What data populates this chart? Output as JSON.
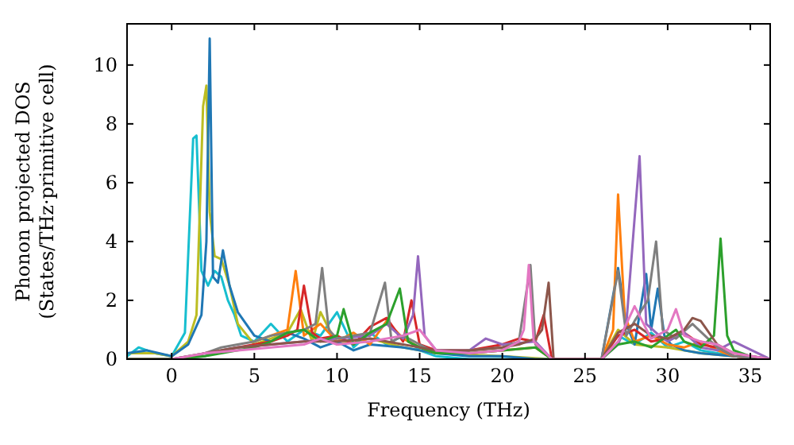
{
  "chart_data": {
    "type": "line",
    "xlabel": "Frequency (THz)",
    "ylabel": "Phonon projected DOS\n(States/THz·primitive cell)",
    "xlim": [
      -2.7,
      36.2
    ],
    "ylim": [
      0,
      11.4
    ],
    "xticks": [
      0,
      5,
      10,
      15,
      20,
      25,
      30,
      35
    ],
    "yticks": [
      0,
      2,
      4,
      6,
      8,
      10
    ],
    "grid": false,
    "marker": "none",
    "line_style": "solid",
    "series": [
      {
        "color": "#17becf",
        "x": [
          -2.7,
          -2,
          -1,
          0,
          0.8,
          1.3,
          1.5,
          1.8,
          2.2,
          2.6,
          3,
          3.4,
          3.8,
          4.2,
          5,
          6,
          7,
          8,
          9,
          10,
          11,
          12,
          13,
          14,
          15,
          16,
          18,
          20,
          22,
          23,
          26,
          27,
          28,
          29,
          30,
          31,
          32,
          33,
          34
        ],
        "values": [
          0.1,
          0.4,
          0.2,
          0.1,
          0.9,
          7.5,
          7.6,
          3.0,
          2.5,
          3.0,
          2.8,
          2.0,
          1.5,
          0.8,
          0.6,
          1.2,
          0.6,
          1.0,
          0.8,
          1.6,
          0.4,
          0.9,
          0.5,
          0.8,
          0.3,
          0.1,
          0,
          0,
          0,
          0,
          0,
          0.8,
          0.5,
          0.9,
          0.4,
          0.6,
          0.3,
          0.2,
          0.1
        ]
      },
      {
        "color": "#bcbd22",
        "x": [
          -2.7,
          -1,
          0,
          1,
          1.5,
          1.9,
          2.1,
          2.3,
          2.6,
          3,
          3.5,
          4,
          5,
          6,
          7,
          7.8,
          8.5,
          9,
          10,
          12,
          14,
          16,
          20,
          23,
          26,
          27,
          28,
          30,
          32,
          34,
          36.2
        ],
        "values": [
          0.2,
          0.2,
          0.1,
          0.6,
          1.5,
          8.6,
          9.3,
          5,
          3.5,
          3.4,
          2.5,
          1.2,
          0.5,
          0.7,
          0.9,
          1.7,
          0.6,
          1.6,
          0.5,
          0.7,
          0.4,
          0.2,
          0.1,
          0,
          0,
          1.0,
          0.5,
          0.4,
          0.2,
          0.1,
          0
        ]
      },
      {
        "color": "#1f77b4",
        "x": [
          -2.7,
          -1.5,
          0,
          1,
          1.8,
          2.1,
          2.3,
          2.5,
          2.8,
          3.1,
          3.5,
          4,
          4.5,
          5,
          6,
          7,
          8,
          9,
          10,
          11,
          12,
          14,
          16,
          18,
          20,
          22,
          23,
          26,
          27,
          27.5,
          28,
          28.7,
          29,
          29.4,
          29.8,
          30.2,
          31,
          32,
          34,
          36.2
        ],
        "values": [
          0.2,
          0.3,
          0.1,
          0.5,
          1.5,
          4,
          10.9,
          2.8,
          2.6,
          3.7,
          2.5,
          1.6,
          1.2,
          0.8,
          0.6,
          0.9,
          0.7,
          0.4,
          0.6,
          0.3,
          0.5,
          0.4,
          0.2,
          0.1,
          0.1,
          0,
          0,
          0,
          3.1,
          1.2,
          0.5,
          2.9,
          1.0,
          2.4,
          0.8,
          0.5,
          0.3,
          0.2,
          0.1,
          0
        ]
      },
      {
        "color": "#ff7f0e",
        "x": [
          5,
          6,
          7,
          7.5,
          8,
          9,
          10,
          11,
          12,
          13,
          14,
          15,
          16,
          18,
          20,
          22,
          23,
          26,
          26.7,
          27,
          27.4,
          28,
          29,
          30,
          31,
          32,
          33,
          34,
          36.2
        ],
        "values": [
          0.6,
          0.8,
          1.0,
          3.0,
          0.8,
          1.2,
          0.6,
          0.9,
          0.5,
          1.3,
          0.7,
          0.4,
          0.2,
          0.2,
          0.3,
          0.4,
          0,
          0,
          1.0,
          5.6,
          1.5,
          0.6,
          0.8,
          0.5,
          0.4,
          0.6,
          0.3,
          0.1,
          0
        ]
      },
      {
        "color": "#d62728",
        "x": [
          3,
          4,
          5,
          6,
          7,
          7.6,
          8,
          8.5,
          9,
          10,
          11,
          12,
          13,
          14,
          14.5,
          15,
          16,
          18,
          20,
          21,
          22,
          22.5,
          23,
          26,
          27,
          28,
          29,
          30,
          31,
          32,
          33,
          34,
          36.2
        ],
        "values": [
          0.3,
          0.4,
          0.5,
          0.6,
          0.8,
          1.0,
          2.5,
          0.9,
          0.7,
          0.8,
          0.5,
          1.1,
          1.4,
          0.6,
          2.0,
          0.5,
          0.3,
          0.3,
          0.5,
          0.7,
          0.6,
          1.5,
          0,
          0,
          0.8,
          1.0,
          0.6,
          0.7,
          0.9,
          0.5,
          0.4,
          0.1,
          0
        ]
      },
      {
        "color": "#9467bd",
        "x": [
          -2.7,
          0,
          2,
          3,
          4,
          6,
          8,
          10,
          12,
          13,
          14,
          14.6,
          14.9,
          15.3,
          16,
          18,
          19,
          20,
          22,
          23,
          26,
          27,
          27.5,
          28,
          28.3,
          28.7,
          29.5,
          30,
          31,
          32,
          33,
          34,
          36.2
        ],
        "values": [
          0,
          0,
          0.1,
          0.3,
          0.4,
          0.5,
          0.6,
          0.7,
          0.8,
          1.2,
          0.7,
          1.5,
          3.5,
          0.8,
          0.3,
          0.3,
          0.7,
          0.5,
          0.6,
          0,
          0,
          0.5,
          1.2,
          4.8,
          6.9,
          1.2,
          0.8,
          0.6,
          0.9,
          0.4,
          0.3,
          0.6,
          0
        ]
      },
      {
        "color": "#7f7f7f",
        "x": [
          -2.7,
          0,
          2,
          3,
          4,
          5,
          6,
          7,
          8,
          8.7,
          9.1,
          9.5,
          10,
          11,
          12,
          12.9,
          13.3,
          14,
          15,
          16,
          18,
          20,
          21,
          21.7,
          22,
          23,
          26,
          27,
          27.5,
          28,
          28.8,
          29.3,
          29.7,
          30.5,
          31.5,
          33,
          34,
          36.2
        ],
        "values": [
          0,
          0,
          0.2,
          0.4,
          0.5,
          0.6,
          0.8,
          0.9,
          1.0,
          1.2,
          3.1,
          1.0,
          0.7,
          0.8,
          0.9,
          2.6,
          0.6,
          0.8,
          0.5,
          0.2,
          0.3,
          0.4,
          0.6,
          3.2,
          0.5,
          0,
          0,
          3.0,
          0.8,
          1.3,
          2.0,
          4.0,
          1.0,
          0.7,
          1.2,
          0.4,
          0.1,
          0
        ]
      },
      {
        "color": "#2ca02c",
        "x": [
          -2.7,
          0,
          2,
          3,
          4,
          5,
          6,
          7,
          8,
          9,
          10,
          10.4,
          11,
          12,
          13,
          13.8,
          14.3,
          15,
          16,
          18,
          20,
          22,
          23,
          26,
          27,
          28,
          29,
          30,
          30.5,
          31,
          32,
          32.8,
          33.2,
          33.6,
          34,
          35,
          36.2
        ],
        "values": [
          0,
          0,
          0.1,
          0.2,
          0.3,
          0.4,
          0.6,
          0.9,
          1.0,
          0.6,
          0.8,
          1.7,
          0.5,
          0.9,
          1.2,
          2.4,
          0.6,
          0.4,
          0.2,
          0.2,
          0.3,
          0.4,
          0,
          0,
          0.5,
          0.6,
          0.4,
          0.8,
          1.0,
          0.6,
          0.4,
          0.8,
          4.1,
          0.8,
          0.3,
          0.1,
          0
        ]
      },
      {
        "color": "#8c564b",
        "x": [
          -2.7,
          0,
          2,
          4,
          6,
          8,
          10,
          12,
          14,
          16,
          18,
          20,
          21,
          22,
          22.4,
          22.8,
          23.1,
          26,
          27,
          28,
          29,
          30,
          31,
          31.5,
          32,
          33,
          34,
          36.2
        ],
        "values": [
          0,
          0,
          0.2,
          0.4,
          0.5,
          0.6,
          0.6,
          0.7,
          0.5,
          0.3,
          0.3,
          0.4,
          0.5,
          0.7,
          1.0,
          2.6,
          0,
          0,
          0.9,
          1.2,
          0.8,
          0.7,
          1.0,
          1.4,
          1.3,
          0.5,
          0.2,
          0
        ]
      },
      {
        "color": "#e377c2",
        "x": [
          0,
          2,
          4,
          6,
          8,
          9,
          10,
          12,
          14,
          15,
          16,
          18,
          20,
          21,
          21.3,
          21.6,
          21.9,
          23,
          26,
          27,
          28,
          29,
          30,
          30.5,
          31,
          32,
          33,
          34,
          36.2
        ],
        "values": [
          0,
          0.2,
          0.3,
          0.4,
          0.5,
          0.7,
          0.5,
          0.6,
          0.8,
          1.0,
          0.3,
          0.2,
          0.3,
          0.6,
          1.0,
          3.2,
          0.6,
          0,
          0,
          0.6,
          1.8,
          0.7,
          1.0,
          1.7,
          0.8,
          0.6,
          0.5,
          0.2,
          0
        ]
      }
    ]
  }
}
